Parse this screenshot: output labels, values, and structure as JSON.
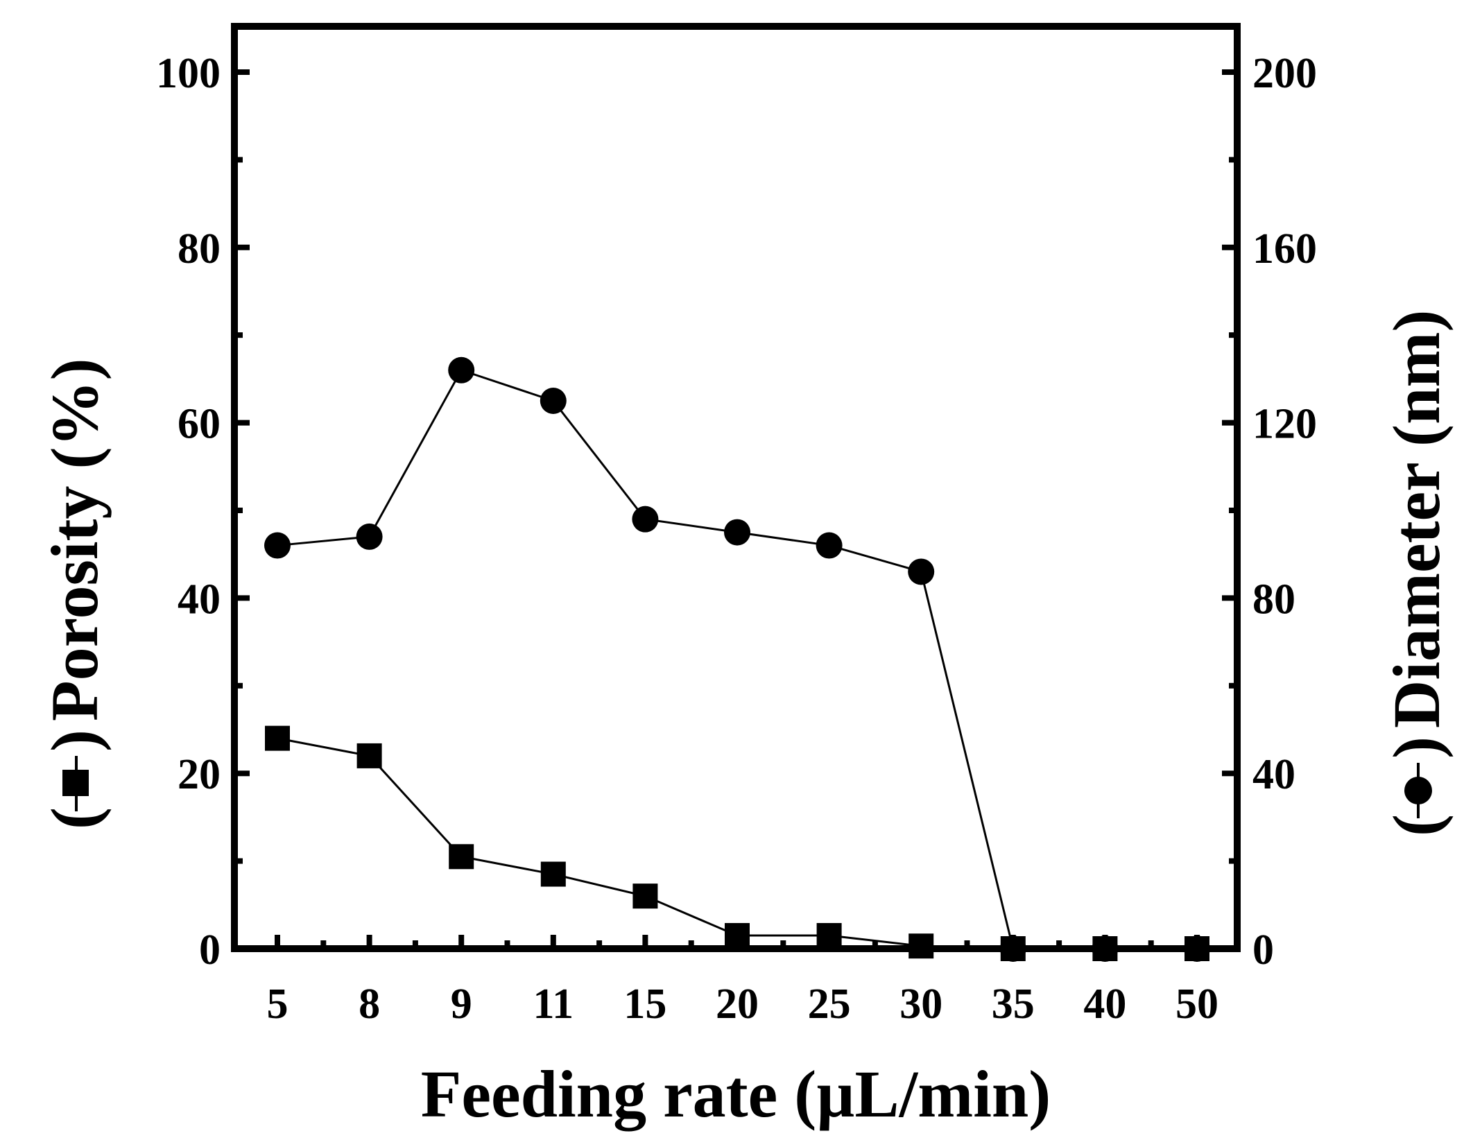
{
  "chart_data": {
    "type": "line",
    "title": "",
    "xlabel": "Feeding rate (µL/min)",
    "ylabel_left": "Porosity (%)",
    "ylabel_right": "Diameter (nm)",
    "categories": [
      "5",
      "8",
      "9",
      "11",
      "15",
      "20",
      "25",
      "30",
      "35",
      "40",
      "50"
    ],
    "ylim_left": [
      0,
      100
    ],
    "ylim_right": [
      0,
      200
    ],
    "yticks_left": [
      0,
      20,
      40,
      60,
      80,
      100
    ],
    "yticks_right": [
      0,
      40,
      80,
      120,
      160,
      200
    ],
    "grid": false,
    "series": [
      {
        "name": "Porosity",
        "axis": "left",
        "marker": "square",
        "values": [
          24,
          22,
          10.5,
          8.5,
          6,
          1.5,
          1.5,
          0.3,
          0,
          0,
          0
        ]
      },
      {
        "name": "Diameter",
        "axis": "right",
        "marker": "circle",
        "values": [
          92,
          94,
          132,
          125,
          98,
          95,
          92,
          86,
          0,
          0,
          0
        ]
      }
    ],
    "colors": {
      "line": "#000000",
      "marker": "#000000",
      "axis": "#000000"
    }
  }
}
